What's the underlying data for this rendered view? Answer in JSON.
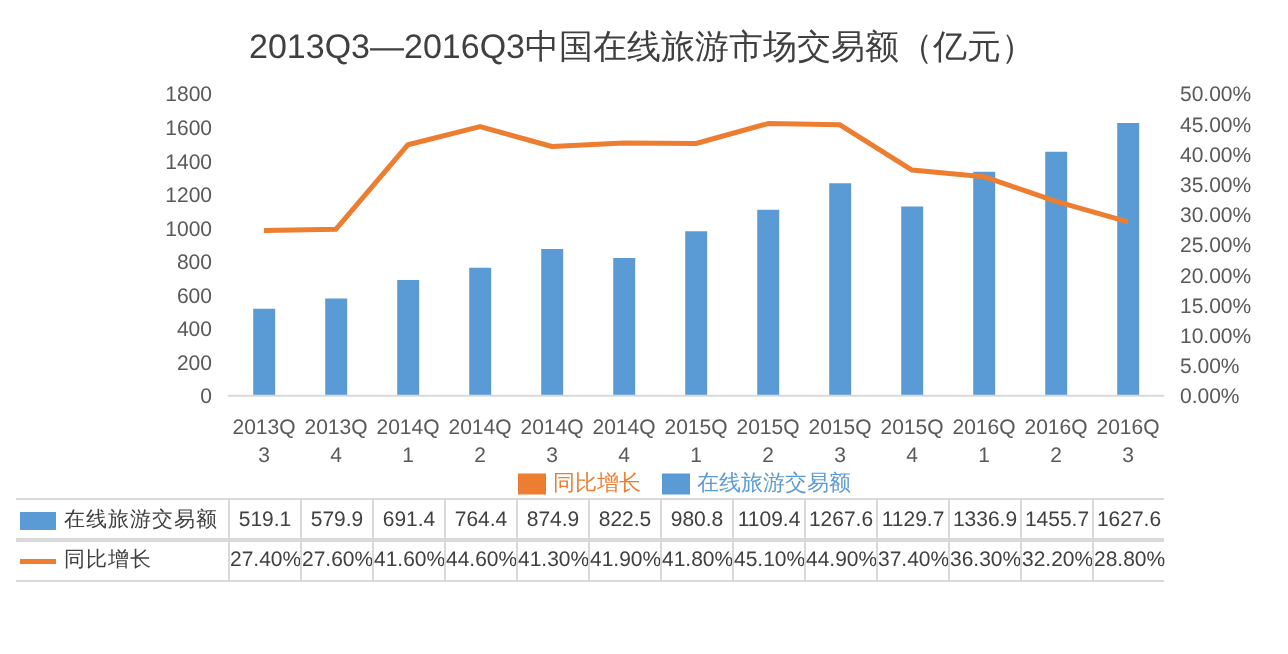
{
  "chart_data": {
    "type": "bar",
    "title": "2013Q3—2016Q3中国在线旅游市场交易额（亿元）",
    "categories": [
      "2013Q3",
      "2013Q4",
      "2014Q1",
      "2014Q2",
      "2014Q3",
      "2014Q4",
      "2015Q1",
      "2015Q2",
      "2015Q3",
      "2015Q4",
      "2016Q1",
      "2016Q2",
      "2016Q3"
    ],
    "series": [
      {
        "name": "在线旅游交易额",
        "color": "#5b9bd5",
        "values": [
          519.1,
          579.9,
          691.4,
          764.4,
          874.9,
          822.5,
          980.8,
          1109.4,
          1267.6,
          1129.7,
          1336.9,
          1455.7,
          1627.6
        ]
      },
      {
        "name": "同比增长",
        "type": "line",
        "axis": "y2",
        "color": "#ed7d31",
        "values": [
          27.4,
          27.6,
          41.6,
          44.6,
          41.3,
          41.9,
          41.8,
          45.1,
          44.9,
          37.4,
          36.3,
          32.2,
          28.8
        ],
        "value_labels": [
          "27.40%",
          "27.60%",
          "41.60%",
          "44.60%",
          "41.30%",
          "41.90%",
          "41.80%",
          "45.10%",
          "44.90%",
          "37.40%",
          "36.30%",
          "32.20%",
          "28.80%"
        ]
      }
    ],
    "ylim": [
      0,
      1800
    ],
    "yticks": [
      0,
      200,
      400,
      600,
      800,
      1000,
      1200,
      1400,
      1600,
      1800
    ],
    "y2lim": [
      0,
      50
    ],
    "y2ticks": [
      {
        "value": 0,
        "label": "0.00%"
      },
      {
        "value": 5,
        "label": "5.00%"
      },
      {
        "value": 10,
        "label": "10.00%"
      },
      {
        "value": 15,
        "label": "15.00%"
      },
      {
        "value": 20,
        "label": "20.00%"
      },
      {
        "value": 25,
        "label": "25.00%"
      },
      {
        "value": 30,
        "label": "30.00%"
      },
      {
        "value": 35,
        "label": "35.00%"
      },
      {
        "value": 40,
        "label": "40.00%"
      },
      {
        "value": 45,
        "label": "45.00%"
      },
      {
        "value": 50,
        "label": "50.00%"
      }
    ],
    "data_labels": true,
    "grid": false,
    "legend": "bottom",
    "marker": "none",
    "line_style": "solid"
  }
}
